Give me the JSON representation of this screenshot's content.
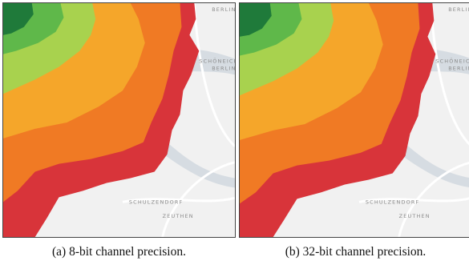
{
  "panels": [
    {
      "caption": "(a) 8-bit channel precision.",
      "map_labels": [
        "BERLIN",
        "SCHÖNEICHE",
        "BERLIN",
        "SCHULZENDORF",
        "ZEUTHEN"
      ]
    },
    {
      "caption": "(b) 32-bit channel precision.",
      "map_labels": [
        "BERLIN",
        "SCHÖNEICHE",
        "BERLIN",
        "SCHULZENDORF",
        "ZEUTHEN"
      ]
    }
  ],
  "colors": {
    "basemap": "#f1f1f1",
    "water": "#d6dce2",
    "road": "#ffffff",
    "zone_1": "#1f7a3a",
    "zone_2": "#5fb84a",
    "zone_3": "#a8d24e",
    "zone_4": "#f5a62a",
    "zone_5": "#f07a24",
    "zone_6": "#d8343a"
  }
}
